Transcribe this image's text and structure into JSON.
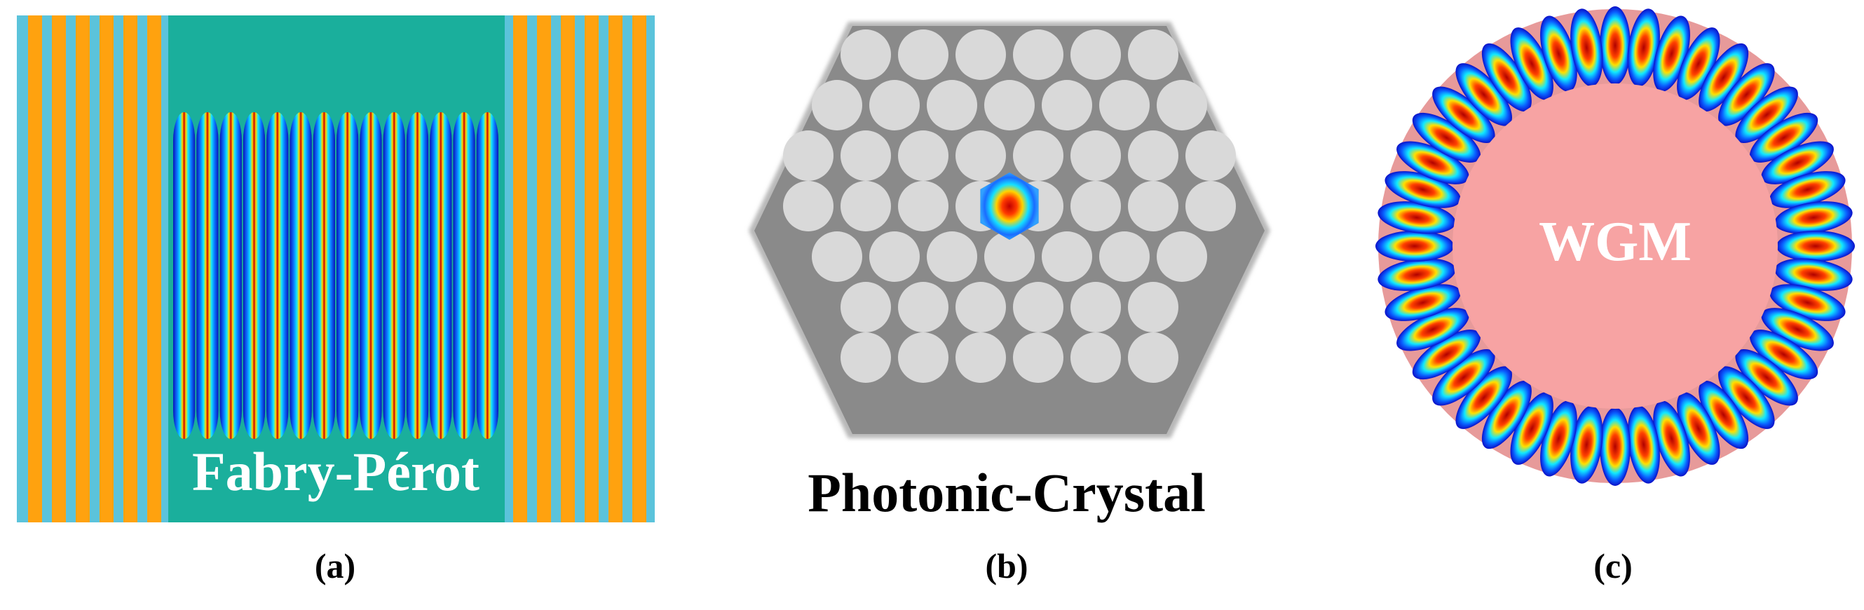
{
  "panels": [
    {
      "id": "a",
      "label": "Fabry-Pérot",
      "caption": "(a)"
    },
    {
      "id": "b",
      "label": "Photonic-Crystal",
      "caption": "(b)"
    },
    {
      "id": "c",
      "label": "WGM",
      "caption": "(c)"
    }
  ],
  "colors": {
    "mirror_orange": "#ffa20f",
    "mirror_blue": "#5bc3db",
    "cavity_teal": "#1aaf9c",
    "crystal_bg": "#8c8c8c",
    "crystal_hole": "#d9d9d9",
    "wgm_core": "#f7a3a3",
    "field_low": "#1010d0",
    "field_high": "#b00000"
  },
  "fabry_perot": {
    "antinodes": 14
  },
  "photonic_crystal": {
    "rows": [
      6,
      7,
      8,
      8,
      7,
      6,
      6
    ],
    "defect": "center"
  },
  "wgm": {
    "lobes": 44
  }
}
